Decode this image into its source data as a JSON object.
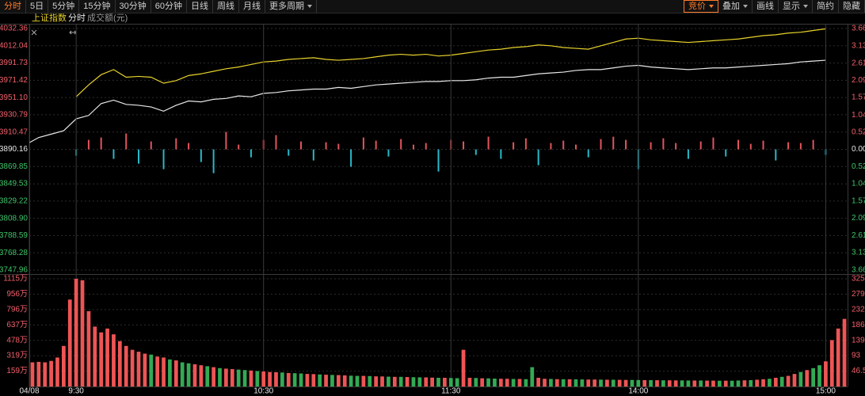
{
  "toolbar": {
    "left": [
      "分时",
      "5日",
      "5分钟",
      "15分钟",
      "30分钟",
      "60分钟",
      "日线",
      "周线",
      "月线",
      "更多周期"
    ],
    "right": [
      "竞价",
      "叠加",
      "画线",
      "显示",
      "简约",
      "隐藏"
    ]
  },
  "chart_data": [
    {
      "type": "line",
      "x": [
        -15,
        -12,
        -8,
        -4,
        0,
        4,
        8,
        12,
        16,
        20,
        24,
        28,
        32,
        36,
        40,
        44,
        48,
        52,
        56,
        60,
        64,
        68,
        72,
        76,
        80,
        84,
        88,
        92,
        96,
        100,
        104,
        108,
        112,
        116,
        120,
        124,
        128,
        132,
        136,
        140,
        144,
        148,
        152,
        156,
        160,
        164,
        168,
        172,
        176,
        180,
        184,
        188,
        192,
        196,
        200,
        204,
        208,
        212,
        216,
        220,
        224,
        228,
        232,
        236,
        240
      ],
      "series": [
        {
          "name": "上证指数",
          "color": "#e8d22c",
          "values": [
            null,
            null,
            null,
            null,
            3952,
            3966,
            3978,
            3984,
            3975,
            3976,
            3975,
            3968,
            3971,
            3977,
            3979,
            3982,
            3985,
            3987,
            3990,
            3993,
            3994,
            3996,
            3997,
            3998,
            3996,
            3995,
            3996,
            3997,
            3999,
            4001,
            4002,
            4001,
            4002,
            4000,
            4001,
            4003,
            4005,
            4007,
            4008,
            4010,
            4011,
            4013,
            4012,
            4010,
            4009,
            4008,
            4012,
            4016,
            4020,
            4021,
            4019,
            4018,
            4017,
            4016,
            4017,
            4018,
            4019,
            4020,
            4022,
            4024,
            4025,
            4027,
            4028,
            4030,
            4032
          ]
        },
        {
          "name": "分时",
          "color": "#e8e8e8",
          "values": [
            3898,
            3904,
            3908,
            3912,
            3926,
            3930,
            3944,
            3948,
            3943,
            3942,
            3940,
            3935,
            3942,
            3947,
            3946,
            3949,
            3950,
            3953,
            3952,
            3956,
            3957,
            3959,
            3960,
            3961,
            3961,
            3963,
            3962,
            3964,
            3966,
            3967,
            3968,
            3969,
            3970,
            3970,
            3971,
            3971,
            3972,
            3974,
            3975,
            3975,
            3977,
            3979,
            3980,
            3981,
            3983,
            3984,
            3984,
            3986,
            3988,
            3989,
            3987,
            3986,
            3985,
            3984,
            3985,
            3986,
            3986,
            3987,
            3988,
            3989,
            3990,
            3991,
            3993,
            3994,
            3995
          ]
        }
      ],
      "xlim": [
        -15,
        247
      ],
      "ylim": [
        3747.96,
        4032.36
      ],
      "yticks": [
        4032.36,
        4012.04,
        3991.73,
        3971.42,
        {
          "value": 3951.1,
          "label": "3951.10"
        },
        3930.79,
        3910.47,
        3890.16,
        3869.85,
        3849.53,
        3829.22,
        {
          "value": 3808.9,
          "label": "3808.90"
        },
        3788.59,
        3768.28,
        3747.96
      ],
      "y2lim": [
        -3.66,
        3.66
      ],
      "y2ticks": [
        {
          "value": 3.66,
          "label": "3.66%"
        },
        {
          "value": 3.13,
          "label": "3.13%"
        },
        {
          "value": 2.61,
          "label": "2.61%"
        },
        {
          "value": 2.09,
          "label": "2.09%"
        },
        {
          "value": 1.57,
          "label": "1.57%"
        },
        {
          "value": 1.04,
          "label": "1.04%"
        },
        {
          "value": 0.52,
          "label": "0.52%"
        },
        {
          "value": 0,
          "label": "0.00%"
        },
        {
          "value": -0.52,
          "label": "0.52%"
        },
        {
          "value": -1.04,
          "label": "1.04%"
        },
        {
          "value": -1.57,
          "label": "1.57%"
        },
        {
          "value": -2.09,
          "label": "2.09%"
        },
        {
          "value": -2.61,
          "label": "2.61%"
        },
        {
          "value": -3.13,
          "label": "3.13%"
        },
        {
          "value": -3.66,
          "label": "3.66%"
        }
      ],
      "grid": true
    },
    {
      "type": "bar",
      "x": [
        0,
        4,
        8,
        12,
        16,
        20,
        24,
        28,
        32,
        36,
        40,
        44,
        48,
        52,
        56,
        60,
        64,
        68,
        72,
        76,
        80,
        84,
        88,
        92,
        96,
        100,
        104,
        108,
        112,
        116,
        120,
        124,
        128,
        132,
        136,
        140,
        144,
        148,
        152,
        156,
        160,
        164,
        168,
        172,
        176,
        180,
        184,
        188,
        192,
        196,
        200,
        204,
        208,
        212,
        216,
        220,
        224,
        228,
        232,
        236,
        240
      ],
      "values": [
        -8,
        12,
        15,
        -12,
        20,
        -18,
        10,
        -25,
        14,
        8,
        -16,
        -30,
        22,
        6,
        -10,
        12,
        18,
        -8,
        10,
        -14,
        9,
        7,
        -22,
        15,
        11,
        -9,
        13,
        6,
        8,
        -28,
        12,
        10,
        -7,
        16,
        -12,
        9,
        14,
        -20,
        8,
        11,
        6,
        -10,
        13,
        16,
        12,
        -25,
        9,
        14,
        8,
        -12,
        10,
        15,
        -9,
        12,
        7,
        11,
        -14,
        9,
        8,
        12,
        -7
      ],
      "up_color": "#e2545c",
      "down_color": "#26b8c8",
      "xlim": [
        -15,
        247
      ],
      "ylim": [
        -40,
        40
      ]
    },
    {
      "type": "bar",
      "title": "成交额(元)",
      "x": [
        -14,
        -12,
        -10,
        -8,
        -6,
        -4,
        -2,
        0,
        2,
        4,
        6,
        8,
        10,
        12,
        14,
        16,
        18,
        20,
        22,
        24,
        26,
        28,
        30,
        32,
        34,
        36,
        38,
        40,
        42,
        44,
        46,
        48,
        50,
        52,
        54,
        56,
        58,
        60,
        62,
        64,
        66,
        68,
        70,
        72,
        74,
        76,
        78,
        80,
        82,
        84,
        86,
        88,
        90,
        92,
        94,
        96,
        98,
        100,
        102,
        104,
        106,
        108,
        110,
        112,
        114,
        116,
        118,
        120,
        122,
        124,
        126,
        128,
        130,
        132,
        134,
        136,
        138,
        140,
        142,
        144,
        146,
        148,
        150,
        152,
        154,
        156,
        158,
        160,
        162,
        164,
        166,
        168,
        170,
        172,
        174,
        176,
        178,
        180,
        182,
        184,
        186,
        188,
        190,
        192,
        194,
        196,
        198,
        200,
        202,
        204,
        206,
        208,
        210,
        212,
        214,
        216,
        218,
        220,
        222,
        224,
        226,
        228,
        230,
        232,
        234,
        236,
        238,
        240,
        242,
        244,
        246
      ],
      "values": [
        250,
        255,
        250,
        265,
        300,
        420,
        900,
        1115,
        1100,
        780,
        620,
        560,
        600,
        540,
        470,
        420,
        380,
        360,
        340,
        330,
        310,
        300,
        280,
        270,
        250,
        240,
        230,
        220,
        210,
        200,
        190,
        185,
        180,
        175,
        170,
        165,
        160,
        155,
        150,
        148,
        145,
        140,
        138,
        135,
        130,
        128,
        125,
        122,
        120,
        118,
        115,
        112,
        110,
        110,
        108,
        105,
        104,
        102,
        100,
        100,
        98,
        96,
        95,
        94,
        92,
        90,
        90,
        88,
        86,
        380,
        90,
        88,
        85,
        84,
        82,
        80,
        80,
        78,
        78,
        76,
        200,
        90,
        80,
        78,
        76,
        75,
        75,
        74,
        73,
        72,
        72,
        71,
        70,
        70,
        69,
        68,
        68,
        67,
        66,
        66,
        65,
        64,
        64,
        63,
        63,
        62,
        62,
        62,
        61,
        61,
        60,
        60,
        60,
        62,
        64,
        66,
        70,
        75,
        80,
        90,
        100,
        110,
        130,
        150,
        170,
        190,
        220,
        260,
        480,
        600,
        700
      ],
      "colors": [
        "#e55",
        "#e55",
        "#e55",
        "#e55",
        "#e55",
        "#e55",
        "#e55",
        "#e55",
        "#e55",
        "#e55",
        "#e55",
        "#e55",
        "#e55",
        "#e55",
        "#e55",
        "#e55",
        "#e55",
        "#e55",
        "#e55",
        "#3a5",
        "#e55",
        "#e55",
        "#3a5",
        "#e55",
        "#3a5",
        "#3a5",
        "#e55",
        "#e55",
        "#3a5",
        "#e55",
        "#3a5",
        "#e55",
        "#e55",
        "#3a5",
        "#3a5",
        "#e55",
        "#3a5",
        "#e55",
        "#e55",
        "#e55",
        "#3a5",
        "#e55",
        "#3a5",
        "#3a5",
        "#e55",
        "#e55",
        "#3a5",
        "#e55",
        "#3a5",
        "#e55",
        "#e55",
        "#3a5",
        "#3a5",
        "#e55",
        "#3a5",
        "#e55",
        "#e55",
        "#3a5",
        "#e55",
        "#3a5",
        "#e55",
        "#3a5",
        "#3a5",
        "#e55",
        "#e55",
        "#3a5",
        "#e55",
        "#3a5",
        "#3a5",
        "#e55",
        "#e55",
        "#3a5",
        "#e55",
        "#3a5",
        "#3a5",
        "#e55",
        "#e55",
        "#3a5",
        "#e55",
        "#3a5",
        "#3a5",
        "#e55",
        "#e55",
        "#3a5",
        "#e55",
        "#3a5",
        "#e55",
        "#3a5",
        "#3a5",
        "#e55",
        "#e55",
        "#3a5",
        "#e55",
        "#3a5",
        "#e55",
        "#e55",
        "#3a5",
        "#3a5",
        "#e55",
        "#3a5",
        "#e55",
        "#3a5",
        "#e55",
        "#e55",
        "#3a5",
        "#3a5",
        "#e55",
        "#3a5",
        "#e55",
        "#e55",
        "#3a5",
        "#e55",
        "#3a5",
        "#3a5",
        "#e55",
        "#3a5",
        "#e55",
        "#e55",
        "#3a5",
        "#e55",
        "#3a5",
        "#e55",
        "#e55",
        "#3a5",
        "#e55",
        "#3a5",
        "#3a5",
        "#e55",
        "#e55",
        "#e55",
        "#e55"
      ],
      "xlim": [
        -15,
        247
      ],
      "ylim": [
        0,
        1115
      ],
      "yticks": [
        {
          "value": 1115,
          "label": "1115万"
        },
        {
          "value": 956,
          "label": "956万"
        },
        {
          "value": 796,
          "label": "796万"
        },
        {
          "value": 637,
          "label": "637万"
        },
        {
          "value": 478,
          "label": "478万"
        },
        {
          "value": 319,
          "label": "319万"
        },
        {
          "value": 159,
          "label": "159万"
        }
      ],
      "y2lim": [
        0,
        325
      ],
      "y2ticks": [
        325,
        279,
        232,
        186,
        139,
        93,
        46.5
      ],
      "xticks": [
        {
          "value": -15,
          "label": "04/08"
        },
        {
          "value": 0,
          "label": "9:30"
        },
        {
          "value": 60,
          "label": "10:30"
        },
        {
          "value": 120,
          "label": "11:30"
        },
        {
          "value": 180,
          "label": "14:00"
        },
        {
          "value": 240,
          "label": "15:00"
        }
      ],
      "grid": true
    }
  ]
}
